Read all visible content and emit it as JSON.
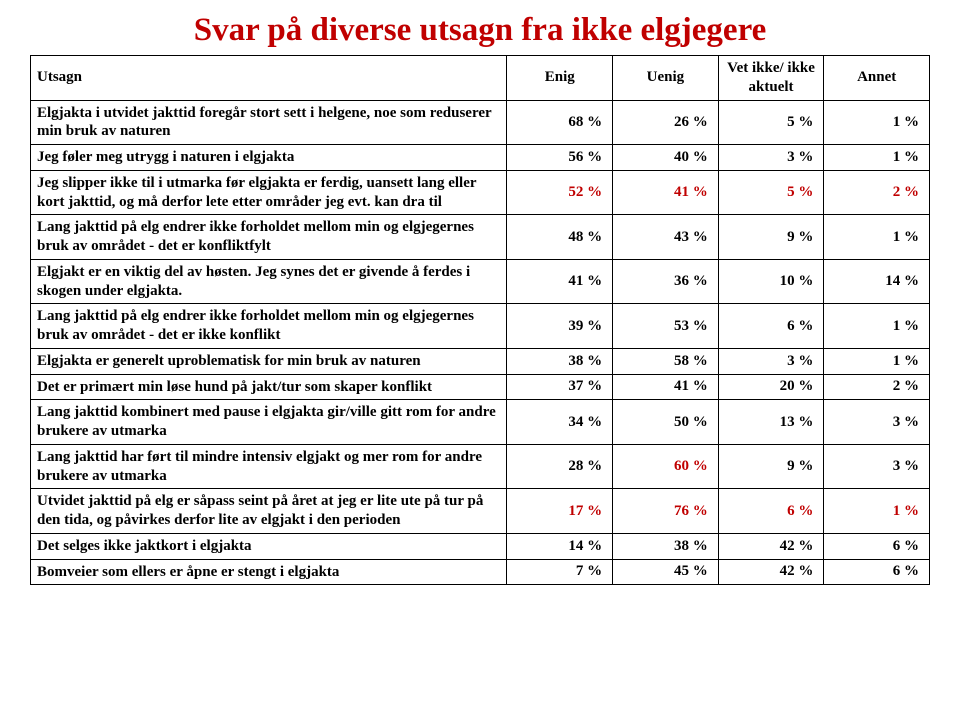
{
  "title": "Svar på diverse utsagn fra ikke elgjegere",
  "columns": {
    "utsagn": "Utsagn",
    "enig": "Enig",
    "uenig": "Uenig",
    "vetikke": "Vet ikke/ ikke aktuelt",
    "annet": "Annet"
  },
  "rows": [
    {
      "utsagn": "Elgjakta i utvidet jakttid foregår stort sett i helgene, noe som reduserer min bruk av naturen",
      "enig": "68 %",
      "uenig": "26 %",
      "vetikke": "5 %",
      "annet": "1 %",
      "highlight": "none"
    },
    {
      "utsagn": "Jeg føler meg utrygg i naturen i elgjakta",
      "enig": "56 %",
      "uenig": "40 %",
      "vetikke": "3 %",
      "annet": "1 %",
      "highlight": "none"
    },
    {
      "utsagn": "Jeg slipper ikke til i utmarka før elgjakta er ferdig, uansett lang eller kort jakttid, og må derfor lete etter områder jeg evt. kan dra til",
      "enig": "52 %",
      "uenig": "41 %",
      "vetikke": "5 %",
      "annet": "2 %",
      "highlight": "all"
    },
    {
      "utsagn": "Lang jakttid på elg endrer ikke forholdet mellom min og elgjegernes bruk av området - det er konfliktfylt",
      "enig": "48 %",
      "uenig": "43 %",
      "vetikke": "9 %",
      "annet": "1 %",
      "highlight": "none"
    },
    {
      "utsagn": "Elgjakt er en viktig del av høsten. Jeg synes det er givende å ferdes i skogen under elgjakta.",
      "enig": "41 %",
      "uenig": "36 %",
      "vetikke": "10 %",
      "annet": "14 %",
      "highlight": "none"
    },
    {
      "utsagn": "Lang jakttid på elg endrer ikke forholdet mellom min og elgjegernes bruk av området - det er ikke konflikt",
      "enig": "39 %",
      "uenig": "53 %",
      "vetikke": "6 %",
      "annet": "1 %",
      "highlight": "none"
    },
    {
      "utsagn": "Elgjakta er generelt uproblematisk for min bruk av naturen",
      "enig": "38 %",
      "uenig": "58 %",
      "vetikke": "3 %",
      "annet": "1 %",
      "highlight": "none"
    },
    {
      "utsagn": "Det er primært min løse hund på jakt/tur som skaper konflikt",
      "enig": "37 %",
      "uenig": "41 %",
      "vetikke": "20 %",
      "annet": "2 %",
      "highlight": "none"
    },
    {
      "utsagn": "Lang jakttid kombinert med pause i elgjakta gir/ville gitt rom for andre brukere av utmarka",
      "enig": "34 %",
      "uenig": "50 %",
      "vetikke": "13 %",
      "annet": "3 %",
      "highlight": "none"
    },
    {
      "utsagn": "Lang jakttid har ført til mindre intensiv elgjakt og mer rom for andre brukere av utmarka",
      "enig": "28 %",
      "uenig": "60 %",
      "vetikke": "9 %",
      "annet": "3 %",
      "highlight": "uenig"
    },
    {
      "utsagn": "Utvidet jakttid på elg er såpass seint på året at jeg er lite ute på tur på den tida, og påvirkes derfor lite av elgjakt i den perioden",
      "enig": "17 %",
      "uenig": "76 %",
      "vetikke": "6 %",
      "annet": "1 %",
      "highlight": "all"
    },
    {
      "utsagn": "Det selges ikke jaktkort i elgjakta",
      "enig": "14 %",
      "uenig": "38 %",
      "vetikke": "42 %",
      "annet": "6 %",
      "highlight": "none"
    },
    {
      "utsagn": "Bomveier som ellers er åpne er stengt i elgjakta",
      "enig": "7 %",
      "uenig": "45 %",
      "vetikke": "42 %",
      "annet": "6 %",
      "highlight": "none"
    }
  ],
  "colors": {
    "title": "#c00000",
    "highlight": "#c00000",
    "text": "#000000",
    "border": "#000000",
    "background": "#ffffff"
  },
  "typography": {
    "title_fontsize": 33,
    "body_fontsize": 15,
    "font_family": "Georgia"
  }
}
